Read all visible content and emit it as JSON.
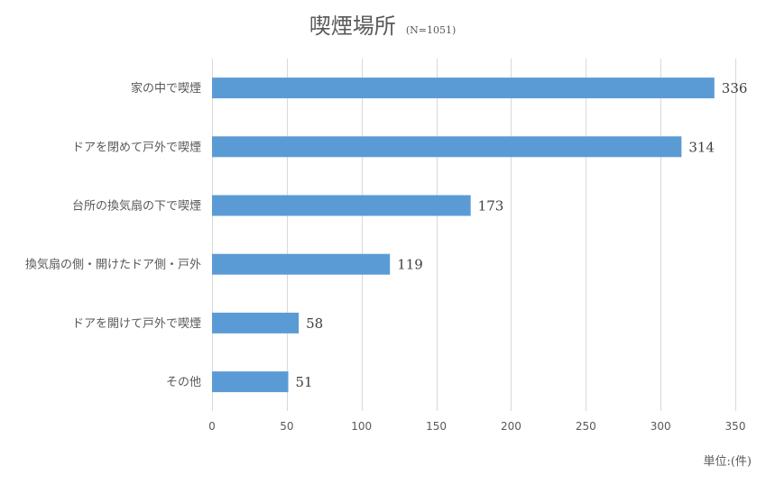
{
  "chart_data": {
    "type": "bar",
    "orientation": "horizontal",
    "title": "喫煙場所",
    "subtitle": "(N=1051)",
    "categories": [
      "家の中で喫煙",
      "ドアを閉めて戸外で喫煙",
      "台所の換気扇の下で喫煙",
      "換気扇の側・開けたドア側・戸外",
      "ドアを開けて戸外で喫煙",
      "その他"
    ],
    "values": [
      336,
      314,
      173,
      119,
      58,
      51
    ],
    "xlim": [
      0,
      350
    ],
    "xticks": [
      0,
      50,
      100,
      150,
      200,
      250,
      300,
      350
    ],
    "xlabel": "",
    "ylabel": "",
    "unit": "単位:(件)",
    "grid": "vertical",
    "legend": "none",
    "bar_color": "#5b9bd5"
  }
}
